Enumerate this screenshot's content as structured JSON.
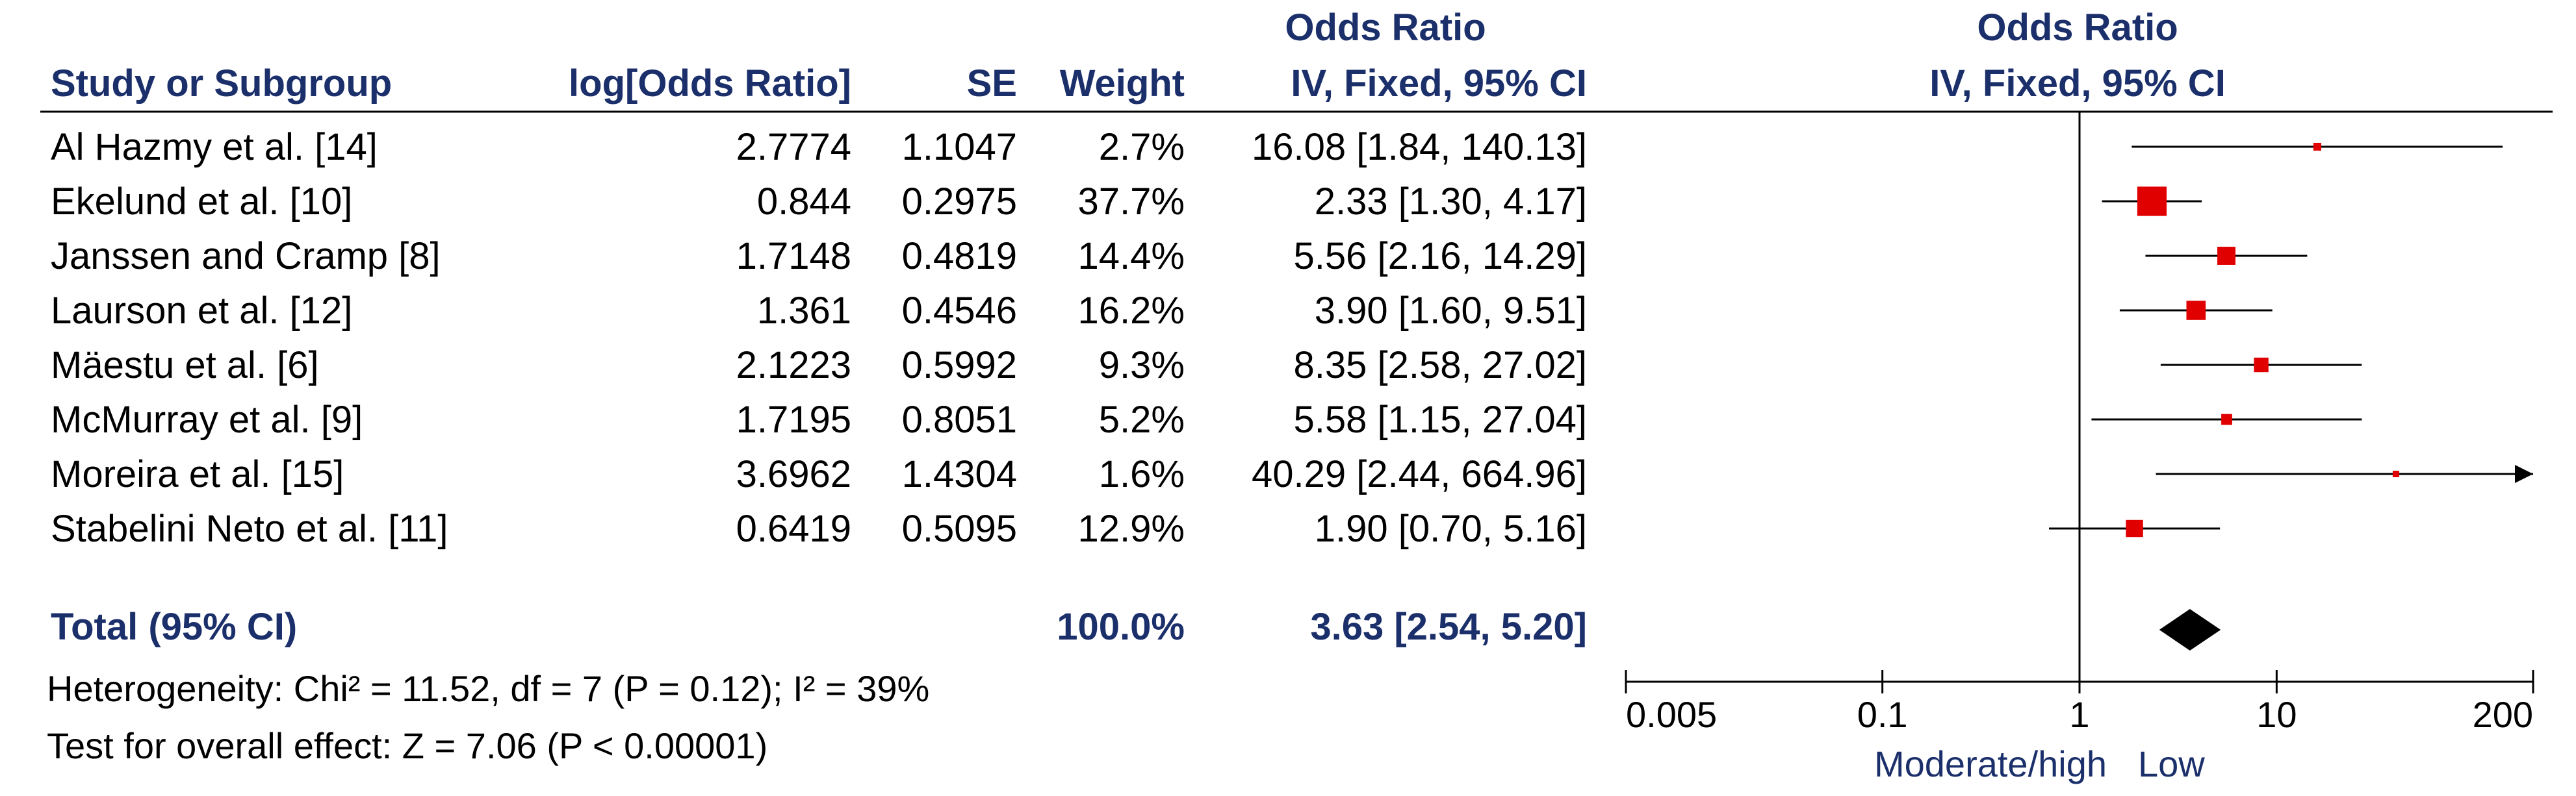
{
  "chart_data": {
    "type": "forest",
    "headers": {
      "study": "Study or Subgroup",
      "logor": "log[Odds Ratio]",
      "se": "SE",
      "weight": "Weight",
      "or_title": "Odds Ratio",
      "or_method": "IV, Fixed, 95% CI",
      "plot_title": "Odds Ratio",
      "plot_method": "IV, Fixed, 95% CI"
    },
    "studies": [
      {
        "name": "Al Hazmy et al. [14]",
        "logor": "2.7774",
        "se": "1.1047",
        "weight": "2.7%",
        "ci_text": "16.08 [1.84, 140.13]",
        "or": 16.08,
        "lo": 1.84,
        "hi": 140.13,
        "w": 2.7
      },
      {
        "name": "Ekelund et al. [10]",
        "logor": "0.844",
        "se": "0.2975",
        "weight": "37.7%",
        "ci_text": "2.33 [1.30, 4.17]",
        "or": 2.33,
        "lo": 1.3,
        "hi": 4.17,
        "w": 37.7
      },
      {
        "name": "Janssen and Cramp [8]",
        "logor": "1.7148",
        "se": "0.4819",
        "weight": "14.4%",
        "ci_text": "5.56 [2.16, 14.29]",
        "or": 5.56,
        "lo": 2.16,
        "hi": 14.29,
        "w": 14.4
      },
      {
        "name": "Laurson et al. [12]",
        "logor": "1.361",
        "se": "0.4546",
        "weight": "16.2%",
        "ci_text": "3.90 [1.60, 9.51]",
        "or": 3.9,
        "lo": 1.6,
        "hi": 9.51,
        "w": 16.2
      },
      {
        "name": "Mäestu et al. [6]",
        "logor": "2.1223",
        "se": "0.5992",
        "weight": "9.3%",
        "ci_text": "8.35 [2.58, 27.02]",
        "or": 8.35,
        "lo": 2.58,
        "hi": 27.02,
        "w": 9.3
      },
      {
        "name": "McMurray et al. [9]",
        "logor": "1.7195",
        "se": "0.8051",
        "weight": "5.2%",
        "ci_text": "5.58 [1.15, 27.04]",
        "or": 5.58,
        "lo": 1.15,
        "hi": 27.04,
        "w": 5.2
      },
      {
        "name": "Moreira et al. [15]",
        "logor": "3.6962",
        "se": "1.4304",
        "weight": "1.6%",
        "ci_text": "40.29 [2.44, 664.96]",
        "or": 40.29,
        "lo": 2.44,
        "hi": 664.96,
        "w": 1.6
      },
      {
        "name": "Stabelini Neto et al. [11]",
        "logor": "0.6419",
        "se": "0.5095",
        "weight": "12.9%",
        "ci_text": "1.90 [0.70, 5.16]",
        "or": 1.9,
        "lo": 0.7,
        "hi": 5.16,
        "w": 12.9
      }
    ],
    "total": {
      "label": "Total (95% CI)",
      "weight": "100.0%",
      "ci_text": "3.63 [2.54, 5.20]",
      "or": 3.63,
      "lo": 2.54,
      "hi": 5.2
    },
    "heterogeneity": "Heterogeneity: Chi² = 11.52, df = 7 (P = 0.12); I² = 39%",
    "overall_test": "Test for overall effect: Z = 7.06 (P < 0.00001)",
    "x_scale": "log",
    "xlim": [
      0.005,
      200
    ],
    "ticks": [
      {
        "value": 0.005,
        "label": "0.005"
      },
      {
        "value": 0.1,
        "label": "0.1"
      },
      {
        "value": 1,
        "label": "1"
      },
      {
        "value": 10,
        "label": "10"
      },
      {
        "value": 200,
        "label": "200"
      }
    ],
    "favours_left": "Moderate/high",
    "favours_right": "Low",
    "colors": {
      "header": "#1b2f6b",
      "marker": "#e00000",
      "diamond": "#000000",
      "line": "#000000"
    }
  }
}
